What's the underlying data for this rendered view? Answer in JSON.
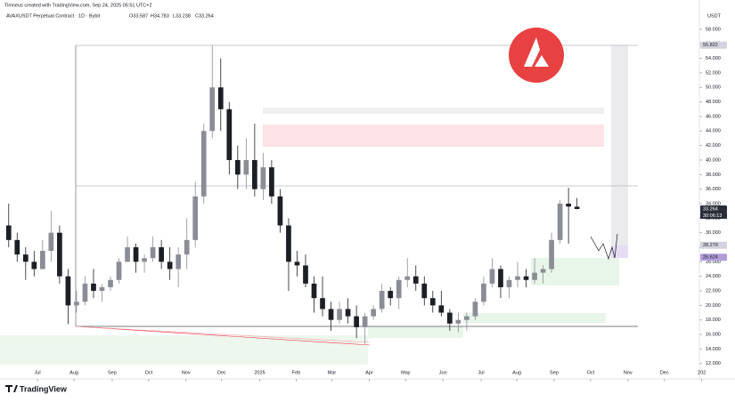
{
  "header": {
    "credit": "Timneus created with TradingView.com, Sep 24, 2025 05:51 UTC+2",
    "symbol": "AVAXUSDT Perpetual Contract · 1D · Bybit",
    "ohlc": [
      "O33.587",
      "H34.783",
      "L33.238",
      "C33.264"
    ],
    "brand": "TradingView"
  },
  "chart_data": {
    "type": "candlestick",
    "axis_unit": "USDT",
    "up_color": "#8a8d96",
    "down_color": "#1c1f26",
    "open": [
      31,
      29,
      27,
      26,
      25,
      27.5,
      30,
      24,
      20,
      20.5,
      23,
      22,
      22.5,
      23.5,
      26,
      28,
      26,
      26.5,
      28,
      26,
      25,
      27,
      29,
      35,
      44,
      50,
      47,
      40,
      38,
      40,
      36,
      39,
      35,
      31,
      26,
      25.5,
      23,
      21,
      19.5,
      18,
      19.5,
      18.5,
      17,
      18.5,
      19.5,
      22,
      21,
      23.5,
      24,
      23,
      21,
      20,
      19,
      17.5,
      18,
      18.5,
      20.5,
      23,
      25,
      22.5,
      23.5,
      24,
      23.5,
      24.5,
      25,
      29,
      34,
      33.587
    ],
    "high": [
      34,
      30,
      28,
      27.5,
      29,
      33,
      31,
      25,
      22,
      24,
      25,
      23,
      24,
      26.5,
      29.5,
      28.5,
      27,
      29.5,
      29,
      28,
      28,
      32,
      37,
      45,
      55.8,
      54,
      48,
      42,
      43,
      45,
      41,
      40,
      36,
      32,
      27.5,
      27,
      24,
      24,
      20.5,
      20.5,
      21,
      20,
      19,
      20,
      23,
      22.5,
      24,
      26.5,
      25.5,
      24,
      22,
      22,
      19.5,
      19,
      19,
      21,
      24,
      26.5,
      25.5,
      24,
      26,
      25,
      26.5,
      25.5,
      30,
      34.5,
      36.2,
      34.783
    ],
    "low": [
      28,
      26,
      23.5,
      24,
      25,
      26,
      23,
      17.4,
      19,
      20,
      21,
      20.5,
      22,
      23,
      26,
      24.5,
      24.5,
      26,
      25,
      23.5,
      22.5,
      25,
      28,
      34,
      43,
      44,
      38,
      36,
      36,
      35,
      34.5,
      34,
      30,
      22,
      24,
      22.5,
      19,
      18.5,
      16.5,
      17.5,
      17.5,
      15.5,
      14.7,
      18,
      19,
      20,
      19.5,
      22.5,
      22,
      20,
      19,
      18.5,
      16.5,
      16.3,
      16.5,
      18,
      20,
      22.5,
      21,
      21,
      22.5,
      22.5,
      23,
      23,
      24.5,
      28.5,
      28.5,
      33.238
    ],
    "close": [
      29,
      27,
      26,
      25,
      27.5,
      30,
      24,
      20,
      20.5,
      23,
      22,
      22.5,
      23.5,
      26,
      28,
      26,
      26.5,
      28,
      26,
      25,
      27,
      29,
      35,
      44,
      50,
      47,
      40,
      38,
      40,
      36,
      39,
      35,
      31,
      26,
      25.5,
      23,
      21,
      19.5,
      18,
      19.5,
      18.5,
      17,
      18.5,
      19.5,
      22,
      21,
      23.5,
      24,
      23,
      21,
      20,
      19,
      17.5,
      18,
      18.5,
      20.5,
      23,
      25,
      22.5,
      23.5,
      24,
      23.5,
      24.5,
      25,
      29,
      34,
      33.6,
      33.264
    ],
    "xlim": [
      -0.5,
      80.9
    ],
    "xticks": [
      {
        "value": 3.4,
        "label": "Jul"
      },
      {
        "value": 7.7,
        "label": "Aug"
      },
      {
        "value": 12.2,
        "label": "Sep"
      },
      {
        "value": 16.5,
        "label": "Oct"
      },
      {
        "value": 20.9,
        "label": "Nov"
      },
      {
        "value": 25.1,
        "label": "Dec"
      },
      {
        "value": 29.6,
        "label": "2025"
      },
      {
        "value": 33.9,
        "label": "Feb"
      },
      {
        "value": 38.1,
        "label": "Mar"
      },
      {
        "value": 42.5,
        "label": "Apr"
      },
      {
        "value": 46.8,
        "label": "May"
      },
      {
        "value": 51.2,
        "label": "Jun"
      },
      {
        "value": 55.7,
        "label": "Jul"
      },
      {
        "value": 59.9,
        "label": "Aug"
      },
      {
        "value": 64.3,
        "label": "Sep"
      },
      {
        "value": 68.6,
        "label": "Oct"
      },
      {
        "value": 73.0,
        "label": "Nov"
      },
      {
        "value": 77.3,
        "label": "Dec"
      },
      {
        "value": 81.7,
        "label": "202"
      }
    ],
    "ylim": [
      11.6,
      58.6
    ],
    "yticks": [
      {
        "value": 12,
        "label": "12.000"
      },
      {
        "value": 14,
        "label": "14.000"
      },
      {
        "value": 16,
        "label": "16.000"
      },
      {
        "value": 18,
        "label": "18.000"
      },
      {
        "value": 20,
        "label": "20.000"
      },
      {
        "value": 22,
        "label": "22.000"
      },
      {
        "value": 24,
        "label": "24.000"
      },
      {
        "value": 26,
        "label": "26.000"
      },
      {
        "value": 28,
        "label": "28.000"
      },
      {
        "value": 30,
        "label": "30.000"
      },
      {
        "value": 32,
        "label": "32.000"
      },
      {
        "value": 34,
        "label": "34.000"
      },
      {
        "value": 36,
        "label": "36.000"
      },
      {
        "value": 38,
        "label": "38.000"
      },
      {
        "value": 40,
        "label": "40.000"
      },
      {
        "value": 42,
        "label": "42.000"
      },
      {
        "value": 44,
        "label": "44.000"
      },
      {
        "value": 46,
        "label": "46.000"
      },
      {
        "value": 48,
        "label": "48.000"
      },
      {
        "value": 50,
        "label": "50.000"
      },
      {
        "value": 52,
        "label": "52.000"
      },
      {
        "value": 54,
        "label": "54.000"
      },
      {
        "value": 56,
        "label": "56.000"
      },
      {
        "value": 58,
        "label": "58.000"
      }
    ],
    "price_badges": [
      {
        "value": 55.822,
        "label": "55.822",
        "color": "#d1d4dc",
        "text_color": "#131722"
      },
      {
        "value": 33.264,
        "label": "33.264",
        "color": "#2a2e39",
        "text_color": "#ffffff"
      },
      {
        "value": 28.279,
        "label": "28.279",
        "color": "#d1d4dc",
        "text_color": "#131722"
      },
      {
        "value": 26.624,
        "label": "26.624",
        "color": "#b39ddb",
        "text_color": "#131722"
      }
    ],
    "countdown": "30:06:13"
  }
}
